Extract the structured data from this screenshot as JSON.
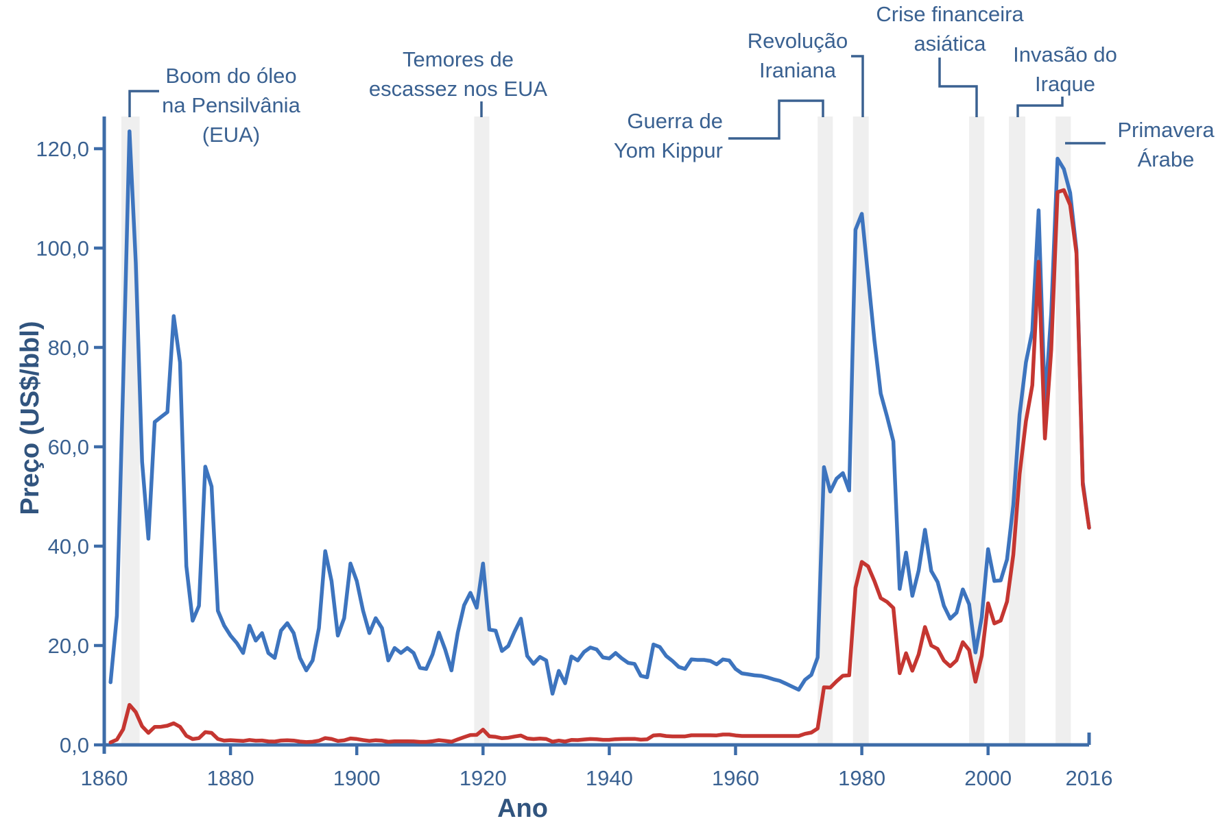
{
  "colors": {
    "axis": "#3d6ca8",
    "tick_text": "#3a6191",
    "annotation_text": "#3a6191",
    "title_text": "#31547e",
    "band": "#efefef",
    "blue_line": "#3d74be",
    "red_line": "#c53631"
  },
  "chart_data": {
    "type": "line",
    "title": "",
    "xlabel": "Ano",
    "ylabel": "Preço (US$/bbl)",
    "x_range": [
      1860,
      2016
    ],
    "y_range": [
      0,
      130
    ],
    "grid": false,
    "legend_position": "none",
    "x_tick_values": [
      1860,
      1880,
      1900,
      1920,
      1940,
      1960,
      1980,
      2000,
      2016
    ],
    "x_tick_labels": [
      "1860",
      "1880",
      "1900",
      "1920",
      "1940",
      "1960",
      "1980",
      "2000",
      "2016"
    ],
    "y_tick_values": [
      0,
      20,
      40,
      60,
      80,
      100,
      120
    ],
    "y_tick_labels": [
      "0,0",
      "20,0",
      "40,0",
      "60,0",
      "80,0",
      "100,0",
      "120,0"
    ],
    "years_start": 1861,
    "series": [
      {
        "name": "serie-azul-preco-real",
        "color": "#3d74be",
        "values": [
          12.6,
          26.0,
          73.0,
          123.5,
          97.0,
          57.0,
          41.5,
          65.0,
          66.0,
          67.0,
          86.3,
          77.0,
          36.0,
          25.0,
          28.0,
          56.0,
          52.0,
          27.0,
          24.0,
          22.0,
          20.5,
          18.5,
          24.0,
          21.0,
          22.5,
          18.5,
          17.5,
          23.0,
          24.5,
          22.5,
          17.5,
          15.0,
          17.0,
          23.5,
          39.0,
          33.0,
          22.0,
          25.5,
          36.5,
          33.0,
          27.0,
          22.5,
          25.5,
          23.5,
          17.0,
          19.5,
          18.5,
          19.5,
          18.5,
          15.5,
          15.3,
          18.2,
          22.6,
          19.2,
          15.0,
          22.6,
          28.1,
          30.6,
          27.6,
          36.5,
          23.2,
          23.0,
          18.9,
          19.9,
          22.8,
          25.4,
          17.9,
          16.3,
          17.7,
          17.0,
          10.3,
          14.9,
          12.4,
          17.8,
          17.0,
          18.7,
          19.6,
          19.2,
          17.6,
          17.4,
          18.5,
          17.4,
          16.5,
          16.3,
          13.9,
          13.6,
          20.2,
          19.7,
          17.9,
          16.9,
          15.7,
          15.3,
          17.2,
          17.1,
          17.1,
          16.9,
          16.2,
          17.2,
          17.0,
          15.3,
          14.4,
          14.2,
          14.0,
          13.9,
          13.6,
          13.2,
          12.9,
          12.3,
          11.7,
          11.1,
          13.1,
          14.1,
          17.6,
          55.9,
          51.0,
          53.6,
          54.7,
          51.2,
          103.7,
          106.9,
          94.2,
          81.4,
          70.7,
          66.1,
          61.1,
          31.4,
          38.7,
          30.0,
          35.1,
          43.3,
          35.0,
          32.8,
          28.0,
          25.4,
          26.6,
          31.3,
          28.3,
          18.6,
          25.7,
          39.4,
          33.0,
          33.1,
          37.3,
          48.3,
          66.5,
          77.0,
          83.3,
          107.6,
          68.4,
          86.9,
          118.0,
          115.9,
          111.1,
          99.6,
          52.9,
          43.7
        ]
      },
      {
        "name": "serie-vermelha-preco-nominal",
        "color": "#c53631",
        "values": [
          0.49,
          1.05,
          3.15,
          8.06,
          6.59,
          3.74,
          2.41,
          3.63,
          3.64,
          3.86,
          4.34,
          3.64,
          1.83,
          1.17,
          1.35,
          2.56,
          2.42,
          1.19,
          0.86,
          0.95,
          0.86,
          0.78,
          1.0,
          0.84,
          0.88,
          0.71,
          0.67,
          0.88,
          0.94,
          0.87,
          0.67,
          0.56,
          0.64,
          0.84,
          1.36,
          1.18,
          0.79,
          0.91,
          1.29,
          1.19,
          0.96,
          0.8,
          0.94,
          0.86,
          0.62,
          0.73,
          0.72,
          0.72,
          0.7,
          0.61,
          0.61,
          0.74,
          0.95,
          0.81,
          0.64,
          1.1,
          1.56,
          1.98,
          2.01,
          3.07,
          1.73,
          1.61,
          1.34,
          1.43,
          1.68,
          1.88,
          1.3,
          1.17,
          1.27,
          1.19,
          0.65,
          0.87,
          0.67,
          1.0,
          0.97,
          1.09,
          1.18,
          1.13,
          1.02,
          1.02,
          1.14,
          1.19,
          1.2,
          1.21,
          1.05,
          1.12,
          1.9,
          1.99,
          1.78,
          1.71,
          1.71,
          1.71,
          1.93,
          1.93,
          1.93,
          1.93,
          1.9,
          2.08,
          2.08,
          1.9,
          1.8,
          1.8,
          1.8,
          1.8,
          1.8,
          1.8,
          1.8,
          1.8,
          1.8,
          1.8,
          2.24,
          2.48,
          3.29,
          11.58,
          11.53,
          12.8,
          13.92,
          14.02,
          31.61,
          36.83,
          35.93,
          32.97,
          29.55,
          28.78,
          27.56,
          14.43,
          18.44,
          14.92,
          18.23,
          23.73,
          20.0,
          19.32,
          16.97,
          15.82,
          17.02,
          20.67,
          19.09,
          12.72,
          17.97,
          28.5,
          24.44,
          25.02,
          28.83,
          38.27,
          54.52,
          65.14,
          72.39,
          97.26,
          61.67,
          79.5,
          111.26,
          111.67,
          108.66,
          98.95,
          52.39,
          43.73
        ]
      }
    ],
    "event_bands": [
      {
        "id": "boom",
        "start": 1862.7,
        "end": 1865.6,
        "label_lines": [
          "Boom do óleo",
          "na Pensilvânia",
          "(EUA)"
        ]
      },
      {
        "id": "temores",
        "start": 1918.6,
        "end": 1921.0,
        "label_lines": [
          "Temores de",
          "escassez nos EUA"
        ]
      },
      {
        "id": "guerra",
        "start": 1973.0,
        "end": 1975.4,
        "label_lines": [
          "Guerra de",
          "Yom Kippur"
        ]
      },
      {
        "id": "revolucao",
        "start": 1978.6,
        "end": 1981.1,
        "label_lines": [
          "Revolução",
          "Iraniana"
        ]
      },
      {
        "id": "crise",
        "start": 1997.0,
        "end": 1999.4,
        "label_lines": [
          "Crise financeira",
          "asiática"
        ]
      },
      {
        "id": "invasao",
        "start": 2003.3,
        "end": 2005.9,
        "label_lines": [
          "Invasão do",
          "Iraque"
        ]
      },
      {
        "id": "primavera",
        "start": 2010.7,
        "end": 2013.1,
        "label_lines": [
          "Primavera",
          "Árabe"
        ]
      }
    ]
  }
}
